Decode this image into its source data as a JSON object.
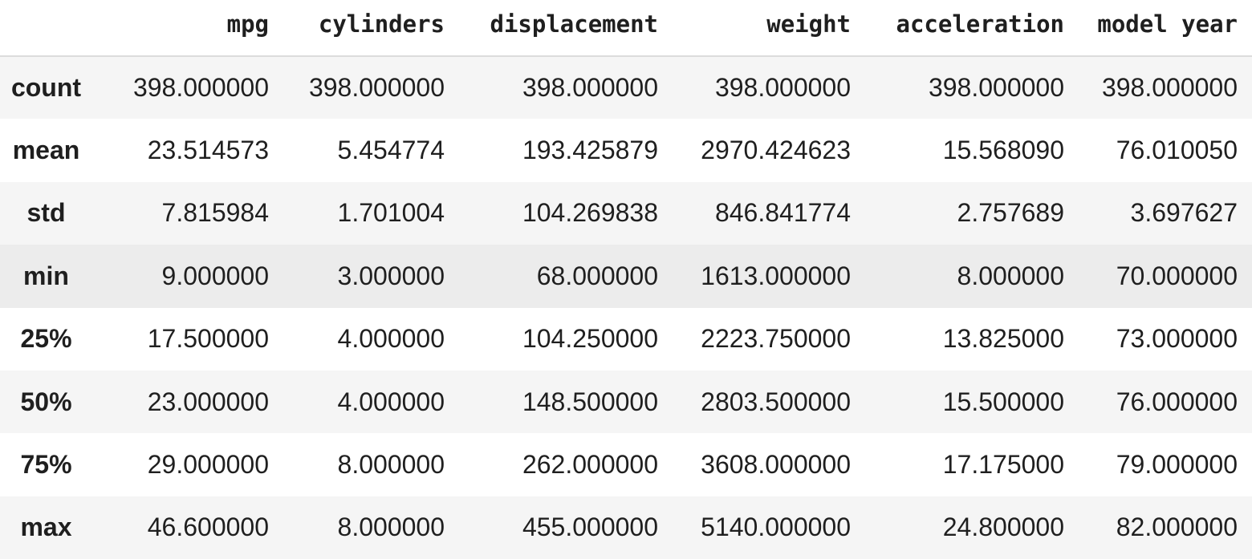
{
  "table": {
    "columns": [
      "mpg",
      "cylinders",
      "displacement",
      "weight",
      "acceleration",
      "model year"
    ],
    "rows": [
      {
        "label": "count",
        "values": [
          "398.000000",
          "398.000000",
          "398.000000",
          "398.000000",
          "398.000000",
          "398.000000"
        ]
      },
      {
        "label": "mean",
        "values": [
          "23.514573",
          "5.454774",
          "193.425879",
          "2970.424623",
          "15.568090",
          "76.010050"
        ]
      },
      {
        "label": "std",
        "values": [
          "7.815984",
          "1.701004",
          "104.269838",
          "846.841774",
          "2.757689",
          "3.697627"
        ]
      },
      {
        "label": "min",
        "values": [
          "9.000000",
          "3.000000",
          "68.000000",
          "1613.000000",
          "8.000000",
          "70.000000"
        ]
      },
      {
        "label": "25%",
        "values": [
          "17.500000",
          "4.000000",
          "104.250000",
          "2223.750000",
          "13.825000",
          "73.000000"
        ]
      },
      {
        "label": "50%",
        "values": [
          "23.000000",
          "4.000000",
          "148.500000",
          "2803.500000",
          "15.500000",
          "76.000000"
        ]
      },
      {
        "label": "75%",
        "values": [
          "29.000000",
          "8.000000",
          "262.000000",
          "3608.000000",
          "17.175000",
          "79.000000"
        ]
      },
      {
        "label": "max",
        "values": [
          "46.600000",
          "8.000000",
          "455.000000",
          "5140.000000",
          "24.800000",
          "82.000000"
        ]
      }
    ]
  },
  "colors": {
    "stripe": "#f5f5f5",
    "hover_row": "#ececec",
    "header_border": "#dcdcdc",
    "text": "#1f1f1f"
  }
}
